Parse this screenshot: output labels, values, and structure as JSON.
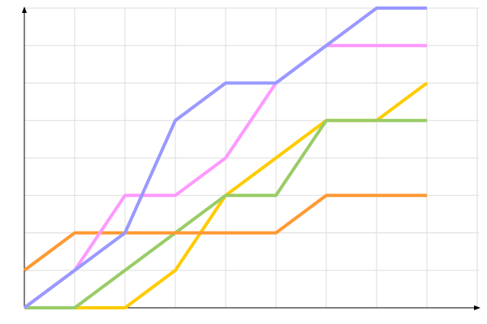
{
  "chart_data": {
    "type": "line",
    "title": "",
    "xlabel": "",
    "ylabel": "",
    "x": [
      0,
      1,
      2,
      3,
      4,
      5,
      6,
      7,
      8
    ],
    "xlim": [
      0,
      9
    ],
    "ylim": [
      0,
      8
    ],
    "grid": true,
    "legend": "none",
    "series": [
      {
        "color": "#ffcc00",
        "values": [
          0,
          0,
          0,
          1,
          3,
          4,
          5,
          5,
          6
        ]
      },
      {
        "color": "#99cc66",
        "values": [
          0,
          0,
          1,
          2,
          3,
          3,
          5,
          5,
          5
        ]
      },
      {
        "color": "#ff9933",
        "values": [
          1,
          2,
          2,
          2,
          2,
          2,
          3,
          3,
          3
        ]
      },
      {
        "color": "#ff99ff",
        "values": [
          0,
          1,
          3,
          3,
          4,
          6,
          7,
          7,
          7
        ]
      },
      {
        "color": "#9999ff",
        "values": [
          0,
          1,
          2,
          5,
          6,
          6,
          7,
          8,
          8
        ]
      }
    ]
  }
}
